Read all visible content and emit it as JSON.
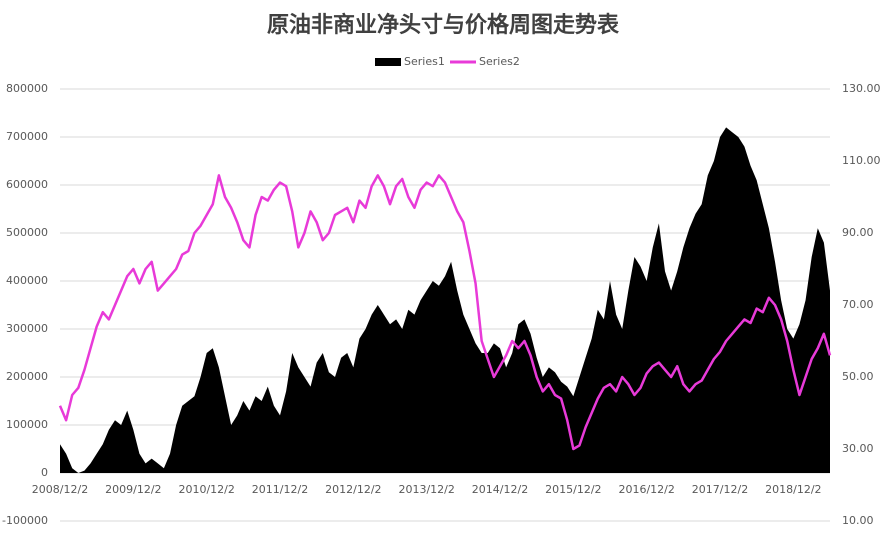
{
  "chart_data": {
    "type": "area-line",
    "title": "原油非商业净头寸与价格周图走势表",
    "categories": [
      "2008/12/2",
      null,
      null,
      null,
      null,
      null,
      null,
      null,
      null,
      null,
      null,
      null,
      "2009/12/2",
      null,
      null,
      null,
      null,
      null,
      null,
      null,
      null,
      null,
      null,
      null,
      "2010/12/2",
      null,
      null,
      null,
      null,
      null,
      null,
      null,
      null,
      null,
      null,
      null,
      "2011/12/2",
      null,
      null,
      null,
      null,
      null,
      null,
      null,
      null,
      null,
      null,
      null,
      "2012/12/2",
      null,
      null,
      null,
      null,
      null,
      null,
      null,
      null,
      null,
      null,
      null,
      "2013/12/2",
      null,
      null,
      null,
      null,
      null,
      null,
      null,
      null,
      null,
      null,
      null,
      "2014/12/2",
      null,
      null,
      null,
      null,
      null,
      null,
      null,
      null,
      null,
      null,
      null,
      "2015/12/2",
      null,
      null,
      null,
      null,
      null,
      null,
      null,
      null,
      null,
      null,
      null,
      "2016/12/2",
      null,
      null,
      null,
      null,
      null,
      null,
      null,
      null,
      null,
      null,
      null,
      "2017/12/2",
      null,
      null,
      null,
      null,
      null,
      null,
      null,
      null,
      null,
      null,
      null,
      "2018/12/2",
      null,
      null,
      null,
      null,
      null,
      null
    ],
    "series": [
      {
        "name": "Series1",
        "color": "#000000",
        "kind": "area",
        "values": [
          60000,
          40000,
          10000,
          0,
          5000,
          20000,
          40000,
          60000,
          90000,
          110000,
          100000,
          130000,
          90000,
          40000,
          20000,
          30000,
          20000,
          10000,
          40000,
          100000,
          140000,
          150000,
          160000,
          200000,
          250000,
          260000,
          220000,
          160000,
          100000,
          120000,
          150000,
          130000,
          160000,
          150000,
          180000,
          140000,
          120000,
          170000,
          250000,
          220000,
          200000,
          180000,
          230000,
          250000,
          210000,
          200000,
          240000,
          250000,
          220000,
          280000,
          300000,
          330000,
          350000,
          330000,
          310000,
          320000,
          300000,
          340000,
          330000,
          360000,
          380000,
          400000,
          390000,
          410000,
          440000,
          380000,
          330000,
          300000,
          270000,
          250000,
          250000,
          270000,
          260000,
          220000,
          250000,
          310000,
          320000,
          290000,
          240000,
          200000,
          220000,
          210000,
          190000,
          180000,
          160000,
          200000,
          240000,
          280000,
          340000,
          320000,
          400000,
          330000,
          300000,
          380000,
          450000,
          430000,
          400000,
          470000,
          520000,
          420000,
          380000,
          420000,
          470000,
          510000,
          540000,
          560000,
          620000,
          650000,
          700000,
          720000,
          710000,
          700000,
          680000,
          640000,
          610000,
          560000,
          510000,
          440000,
          360000,
          300000,
          280000,
          310000,
          360000,
          450000,
          510000,
          480000,
          380000
        ]
      },
      {
        "name": "Series2",
        "color": "#e83ad8",
        "kind": "line",
        "axis": "y2",
        "values": [
          42,
          38,
          45,
          47,
          52,
          58,
          64,
          68,
          66,
          70,
          74,
          78,
          80,
          76,
          80,
          82,
          74,
          76,
          78,
          80,
          84,
          85,
          90,
          92,
          95,
          98,
          106,
          100,
          97,
          93,
          88,
          86,
          95,
          100,
          99,
          102,
          104,
          103,
          96,
          86,
          90,
          96,
          93,
          88,
          90,
          95,
          96,
          97,
          93,
          99,
          97,
          103,
          106,
          103,
          98,
          103,
          105,
          100,
          97,
          102,
          104,
          103,
          106,
          104,
          100,
          96,
          93,
          85,
          76,
          60,
          55,
          50,
          53,
          56,
          60,
          58,
          60,
          56,
          50,
          46,
          48,
          45,
          44,
          38,
          30,
          31,
          36,
          40,
          44,
          47,
          48,
          46,
          50,
          48,
          45,
          47,
          51,
          53,
          54,
          52,
          50,
          53,
          48,
          46,
          48,
          49,
          52,
          55,
          57,
          60,
          62,
          64,
          66,
          65,
          69,
          68,
          72,
          70,
          66,
          60,
          52,
          45,
          50,
          55,
          58,
          62,
          56
        ]
      }
    ],
    "ylim": [
      -100000,
      800000
    ],
    "yticks": [
      -100000,
      0,
      100000,
      200000,
      300000,
      400000,
      500000,
      600000,
      700000,
      800000
    ],
    "y2lim": [
      10,
      130
    ],
    "y2ticks": [
      {
        "value": 10,
        "label": "10.00"
      },
      {
        "value": 30,
        "label": "30.00"
      },
      {
        "value": 50,
        "label": "50.00"
      },
      {
        "value": 70,
        "label": "70.00"
      },
      {
        "value": 90,
        "label": "90.00"
      },
      {
        "value": 110,
        "label": "110.00"
      },
      {
        "value": 130,
        "label": "130.00"
      }
    ],
    "grid": true,
    "legend": "top"
  }
}
